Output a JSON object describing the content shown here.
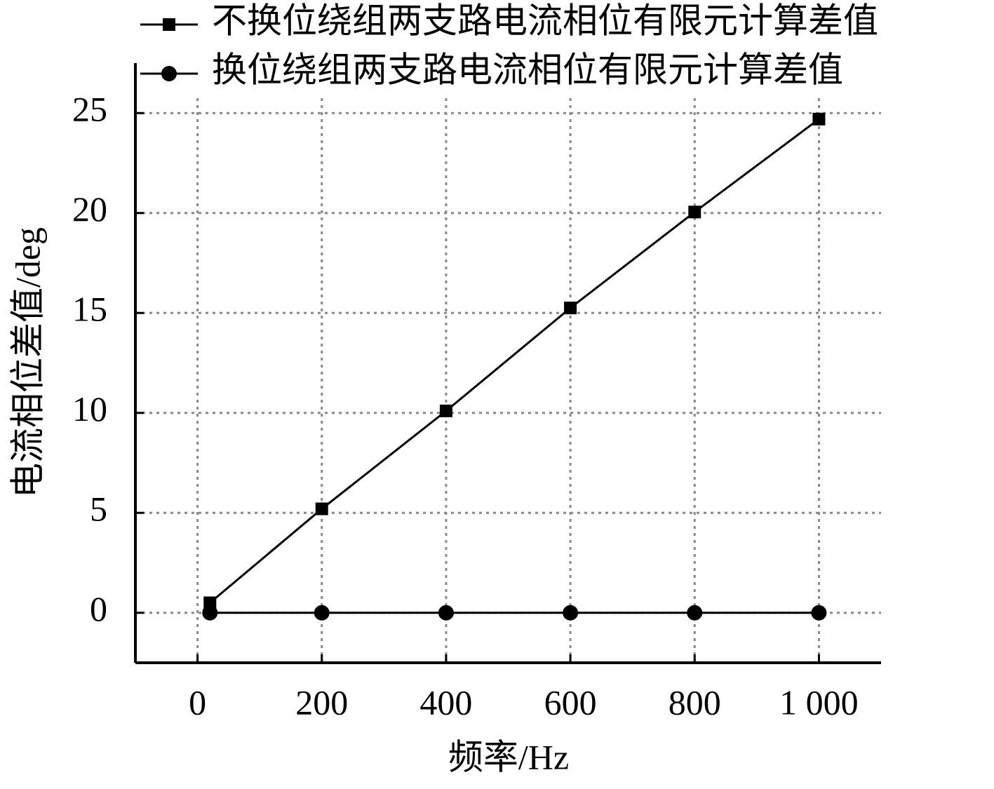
{
  "chart_data": {
    "type": "line",
    "x_label": "频率/Hz",
    "y_label": "电流相位差值/deg",
    "x": [
      20,
      200,
      400,
      600,
      800,
      1000
    ],
    "series": [
      {
        "name": "不换位绕组两支路电流相位有限元计算差值",
        "color": "#000000",
        "marker": "square",
        "values": [
          0.5,
          5.2,
          10.1,
          15.25,
          20.05,
          24.7
        ]
      },
      {
        "name": "换位绕组两支路电流相位有限元计算差值",
        "color": "#000000",
        "marker": "circle",
        "values": [
          0,
          0,
          0,
          0,
          0,
          0
        ]
      }
    ],
    "xlim": [
      -100,
      1100
    ],
    "ylim": [
      -2.5,
      27.5
    ],
    "xticks": [
      0,
      200,
      400,
      600,
      800,
      {
        "value": 1000,
        "label": "1 000"
      }
    ],
    "yticks": [
      0,
      5,
      10,
      15,
      20,
      25
    ],
    "grid": true,
    "legend": "top"
  }
}
